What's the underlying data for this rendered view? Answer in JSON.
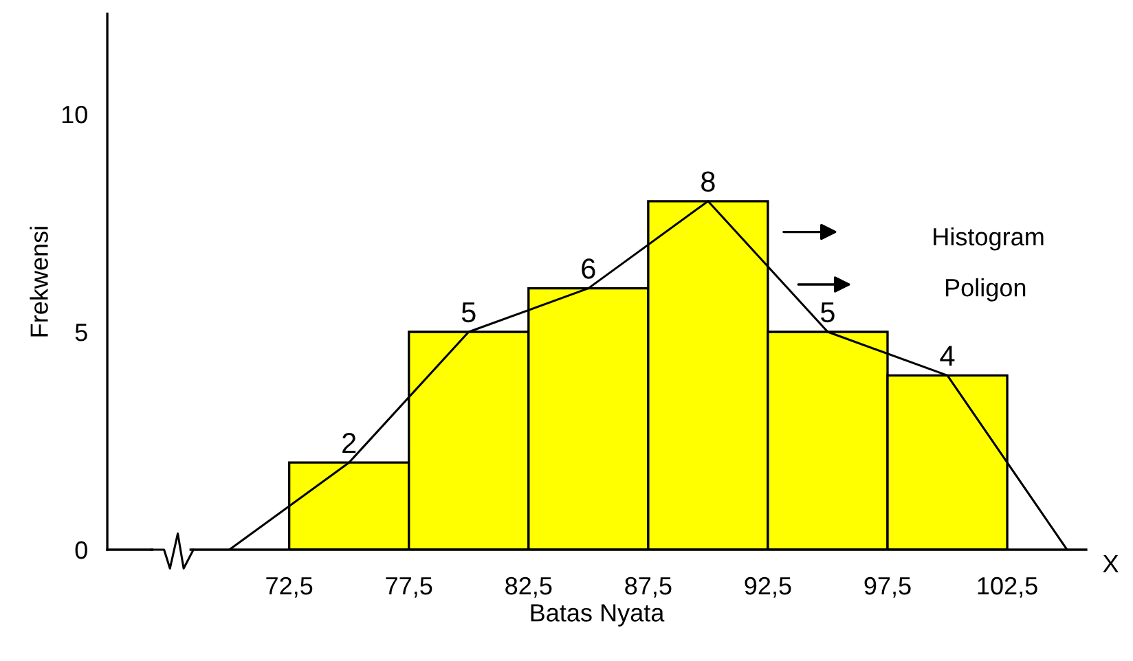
{
  "chart_data": {
    "type": "histogram",
    "xlabel": "Batas Nyata",
    "ylabel": "Frekwensi",
    "bins": [
      72.5,
      77.5,
      82.5,
      87.5,
      92.5,
      97.5,
      102.5
    ],
    "values": [
      2,
      5,
      6,
      8,
      5,
      4
    ],
    "color": "#ffff00",
    "series": [
      {
        "type": "line",
        "color": "#000000",
        "x": [
          70,
          75,
          80,
          85,
          90,
          95,
          100,
          105
        ],
        "values": [
          0,
          2,
          5,
          6,
          8,
          5,
          4,
          0
        ],
        "value_labels": [
          null,
          "2",
          "5",
          "6",
          "8",
          "5",
          "4",
          null
        ]
      }
    ],
    "xlim": [
      64.9,
      105.8
    ],
    "ylim": [
      0,
      12.3
    ],
    "xticks": [
      {
        "value": 72.5,
        "label": "72,5"
      },
      {
        "value": 77.5,
        "label": "77,5"
      },
      {
        "value": 82.5,
        "label": "82,5"
      },
      {
        "value": 87.5,
        "label": "87,5"
      },
      {
        "value": 92.5,
        "label": "92,5"
      },
      {
        "value": 97.5,
        "label": "97,5"
      },
      {
        "value": 102.5,
        "label": "102,5"
      }
    ],
    "yticks": [
      0,
      5,
      10
    ],
    "grid": false,
    "legend": false,
    "annotations": [
      "Histogram",
      "Poligon",
      "X"
    ]
  }
}
